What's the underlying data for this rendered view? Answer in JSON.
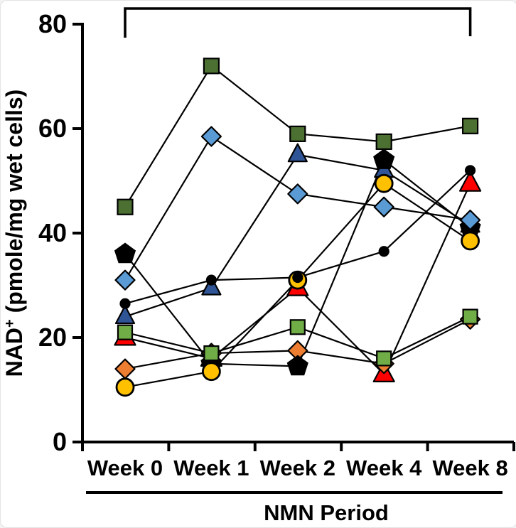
{
  "chart_data": {
    "type": "line",
    "title": "",
    "categories": [
      "Week 0",
      "Week 1",
      "Week 2",
      "Week 4",
      "Week 8"
    ],
    "xlabel": "NMN Period",
    "ylabel": "NAD+ (pmole/mg wet cells)",
    "ylabel_parts": {
      "prefix": "NAD",
      "superscript": "+",
      "suffix": " (pmole/mg wet cells)"
    },
    "ylim": [
      0,
      80
    ],
    "yticks": [
      0,
      20,
      40,
      60,
      80
    ],
    "grid": false,
    "legend_position": "none",
    "line_color": "#000000",
    "significance_bracket": {
      "from_category": "Week 0",
      "to_category": "Week 8"
    },
    "series": [
      {
        "name": "subject-navy-triangle",
        "marker": "triangle",
        "color": "#2f5597",
        "size": 26,
        "values": [
          24,
          29.5,
          55,
          52,
          41.5
        ]
      },
      {
        "name": "subject-red-triangle",
        "marker": "triangle",
        "color": "#ff0000",
        "size": 29,
        "values": [
          20,
          16,
          29.5,
          13,
          49.5
        ]
      },
      {
        "name": "subject-orange-diamond",
        "marker": "diamond",
        "color": "#ed7d31",
        "size": 27,
        "values": [
          14,
          17,
          17.5,
          15,
          23.5
        ]
      },
      {
        "name": "subject-black-pentagon",
        "marker": "pentagon",
        "color": "#000000",
        "size": 29,
        "values": [
          36,
          15,
          14.5,
          54,
          41
        ]
      },
      {
        "name": "subject-light-green-square",
        "marker": "square",
        "color": "#70ad47",
        "size": 20,
        "values": [
          21,
          17,
          22,
          16,
          24
        ]
      },
      {
        "name": "subject-yellow-circle",
        "marker": "circle",
        "color": "#ffc000",
        "size": 24,
        "values": [
          10.5,
          13.5,
          31,
          49.5,
          38.5
        ]
      },
      {
        "name": "subject-black-circle",
        "marker": "circle",
        "color": "#000000",
        "size": 13,
        "values": [
          26.5,
          31,
          31.5,
          36.5,
          52
        ]
      },
      {
        "name": "subject-blue-diamond",
        "marker": "diamond",
        "color": "#5b9bd5",
        "size": 27,
        "values": [
          31,
          58.5,
          47.5,
          45,
          42.5
        ]
      },
      {
        "name": "subject-dark-green-square",
        "marker": "square",
        "color": "#4c7031",
        "size": 21,
        "values": [
          45,
          72,
          59,
          57.5,
          60.5
        ]
      }
    ]
  }
}
